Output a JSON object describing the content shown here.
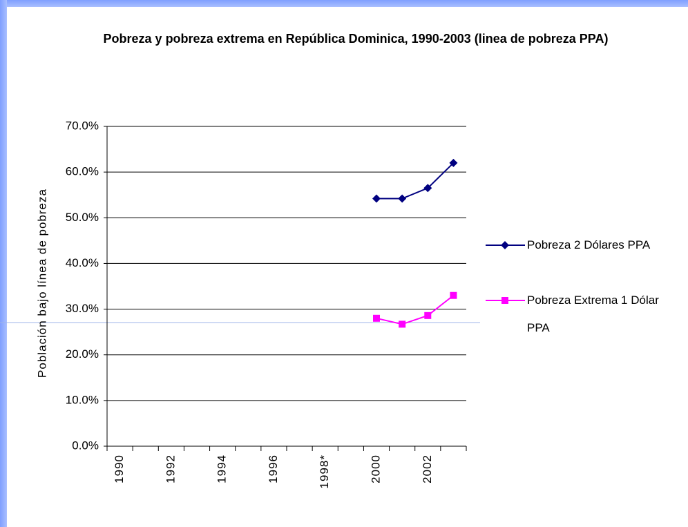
{
  "chart_data": {
    "type": "line",
    "title": "Pobreza y pobreza extrema en República Dominica, 1990-2003 (linea de pobreza PPA)",
    "y_label": "Población bajo línea de pobreza",
    "categories": [
      "1990",
      null,
      "1992",
      null,
      "1994",
      null,
      "1996",
      null,
      "1998*",
      null,
      "2000",
      null,
      "2002",
      null
    ],
    "series": [
      {
        "name": "Pobreza 2 Dólares PPA",
        "color": "#000080",
        "marker": "diamond",
        "values": [
          null,
          null,
          null,
          null,
          null,
          null,
          null,
          null,
          null,
          null,
          54.2,
          54.2,
          56.5,
          62.0
        ]
      },
      {
        "name": "Pobreza Extrema 1 Dólar PPA",
        "color": "#ff00ff",
        "marker": "square",
        "values": [
          null,
          null,
          null,
          null,
          null,
          null,
          null,
          null,
          null,
          null,
          28.0,
          26.7,
          28.6,
          33.0
        ]
      }
    ],
    "ylim": [
      0,
      70
    ],
    "yticks": [
      {
        "value": 0,
        "label": "0.0%"
      },
      {
        "value": 10,
        "label": "10.0%"
      },
      {
        "value": 20,
        "label": "20.0%"
      },
      {
        "value": 30,
        "label": "30.0%"
      },
      {
        "value": 40,
        "label": "40.0%"
      },
      {
        "value": 50,
        "label": "50.0%"
      },
      {
        "value": 60,
        "label": "60.0%"
      },
      {
        "value": 70,
        "label": "70.0%"
      }
    ],
    "grid": true,
    "legend": "right"
  }
}
